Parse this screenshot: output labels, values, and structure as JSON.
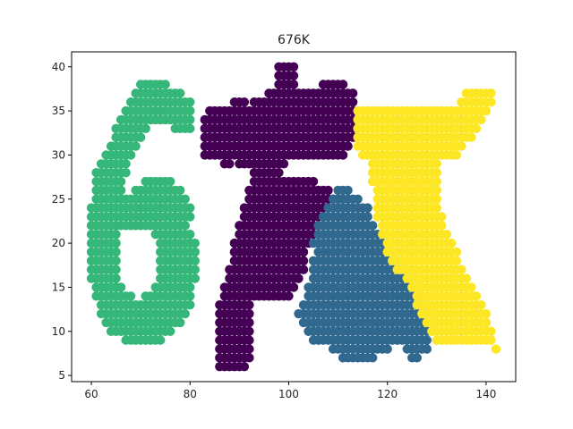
{
  "chart_data": {
    "type": "scatter",
    "title": "676K",
    "xlabel": "",
    "ylabel": "",
    "xlim": [
      56,
      146
    ],
    "ylim": [
      4.3,
      41.7
    ],
    "x_ticks": [
      60,
      80,
      100,
      120,
      140
    ],
    "y_ticks": [
      5,
      10,
      15,
      20,
      25,
      30,
      35,
      40
    ],
    "grid": false,
    "legend": "none",
    "marker": "circle",
    "colors": {
      "cluster_0": "#440154",
      "cluster_1": "#31688e",
      "cluster_2": "#35b779",
      "cluster_3": "#fde725"
    },
    "series": [
      {
        "cluster": "cluster_2",
        "runs": [
          [
            38,
            70,
            75
          ],
          [
            37,
            69,
            78
          ],
          [
            36,
            68,
            80
          ],
          [
            35,
            67,
            80
          ],
          [
            34,
            66,
            80
          ],
          [
            33,
            65,
            71
          ],
          [
            33,
            77,
            80
          ],
          [
            32,
            65,
            70
          ],
          [
            31,
            64,
            69
          ],
          [
            30,
            63,
            68
          ],
          [
            29,
            62,
            67
          ],
          [
            28,
            61,
            67
          ],
          [
            27,
            61,
            66
          ],
          [
            26,
            61,
            66
          ],
          [
            27,
            71,
            76
          ],
          [
            26,
            69,
            78
          ],
          [
            25,
            61,
            79
          ],
          [
            24,
            60,
            80
          ],
          [
            23,
            60,
            80
          ],
          [
            22,
            60,
            79
          ],
          [
            21,
            60,
            65
          ],
          [
            21,
            73,
            80
          ],
          [
            20,
            60,
            65
          ],
          [
            20,
            74,
            81
          ],
          [
            19,
            60,
            65
          ],
          [
            19,
            74,
            81
          ],
          [
            18,
            60,
            65
          ],
          [
            18,
            74,
            81
          ],
          [
            17,
            60,
            65
          ],
          [
            17,
            74,
            81
          ],
          [
            16,
            60,
            65
          ],
          [
            16,
            74,
            81
          ],
          [
            15,
            61,
            66
          ],
          [
            15,
            73,
            80
          ],
          [
            14,
            61,
            68
          ],
          [
            14,
            71,
            80
          ],
          [
            13,
            62,
            80
          ],
          [
            12,
            62,
            79
          ],
          [
            11,
            63,
            78
          ],
          [
            10,
            64,
            76
          ],
          [
            9,
            67,
            74
          ]
        ]
      },
      {
        "cluster": "cluster_0",
        "runs": [
          [
            40,
            98,
            101
          ],
          [
            39,
            98,
            101
          ],
          [
            38,
            98,
            101
          ],
          [
            38,
            107,
            111
          ],
          [
            37,
            96,
            113
          ],
          [
            36,
            89,
            91
          ],
          [
            36,
            93,
            113
          ],
          [
            35,
            84,
            113
          ],
          [
            34,
            83,
            113
          ],
          [
            33,
            83,
            113
          ],
          [
            32,
            83,
            113
          ],
          [
            31,
            83,
            112
          ],
          [
            30,
            83,
            111
          ],
          [
            29,
            87,
            88
          ],
          [
            29,
            90,
            99
          ],
          [
            28,
            93,
            98
          ],
          [
            27,
            93,
            105
          ],
          [
            26,
            92,
            108
          ],
          [
            25,
            92,
            110
          ],
          [
            24,
            91,
            108
          ],
          [
            23,
            91,
            107
          ],
          [
            22,
            90,
            106
          ],
          [
            21,
            90,
            105
          ],
          [
            20,
            89,
            104
          ],
          [
            19,
            89,
            103
          ],
          [
            18,
            89,
            103
          ],
          [
            17,
            88,
            103
          ],
          [
            16,
            88,
            102
          ],
          [
            15,
            87,
            101
          ],
          [
            14,
            87,
            100
          ],
          [
            13,
            86,
            92
          ],
          [
            12,
            86,
            92
          ],
          [
            11,
            86,
            92
          ],
          [
            10,
            86,
            92
          ],
          [
            9,
            86,
            92
          ],
          [
            8,
            86,
            92
          ],
          [
            7,
            86,
            92
          ],
          [
            6,
            86,
            91
          ]
        ]
      },
      {
        "cluster": "cluster_1",
        "runs": [
          [
            26,
            110,
            112
          ],
          [
            25,
            109,
            114
          ],
          [
            24,
            108,
            116
          ],
          [
            23,
            107,
            116
          ],
          [
            22,
            106,
            117
          ],
          [
            21,
            106,
            118
          ],
          [
            20,
            105,
            120
          ],
          [
            19,
            106,
            121
          ],
          [
            18,
            105,
            122
          ],
          [
            17,
            105,
            124
          ],
          [
            16,
            105,
            125
          ],
          [
            15,
            104,
            126
          ],
          [
            14,
            104,
            127
          ],
          [
            13,
            103,
            128
          ],
          [
            12,
            102,
            129
          ],
          [
            11,
            103,
            129
          ],
          [
            10,
            104,
            128
          ],
          [
            9,
            105,
            128
          ],
          [
            8,
            109,
            120
          ],
          [
            8,
            124,
            128
          ],
          [
            7,
            111,
            117
          ],
          [
            7,
            125,
            126
          ]
        ]
      },
      {
        "cluster": "cluster_3",
        "runs": [
          [
            37,
            136,
            141
          ],
          [
            36,
            135,
            141
          ],
          [
            35,
            114,
            140
          ],
          [
            34,
            114,
            139
          ],
          [
            33,
            114,
            138
          ],
          [
            32,
            114,
            137
          ],
          [
            31,
            114,
            135
          ],
          [
            30,
            115,
            134
          ],
          [
            29,
            117,
            130
          ],
          [
            28,
            117,
            130
          ],
          [
            27,
            117,
            130
          ],
          [
            26,
            118,
            130
          ],
          [
            25,
            118,
            130
          ],
          [
            24,
            118,
            130
          ],
          [
            23,
            118,
            131
          ],
          [
            22,
            119,
            131
          ],
          [
            21,
            119,
            132
          ],
          [
            20,
            120,
            133
          ],
          [
            19,
            120,
            134
          ],
          [
            18,
            121,
            134
          ],
          [
            17,
            122,
            135
          ],
          [
            16,
            124,
            136
          ],
          [
            15,
            125,
            137
          ],
          [
            14,
            126,
            138
          ],
          [
            13,
            126,
            139
          ],
          [
            12,
            127,
            140
          ],
          [
            11,
            128,
            140
          ],
          [
            10,
            129,
            141
          ],
          [
            9,
            130,
            141
          ],
          [
            8,
            142,
            142
          ]
        ]
      }
    ]
  }
}
